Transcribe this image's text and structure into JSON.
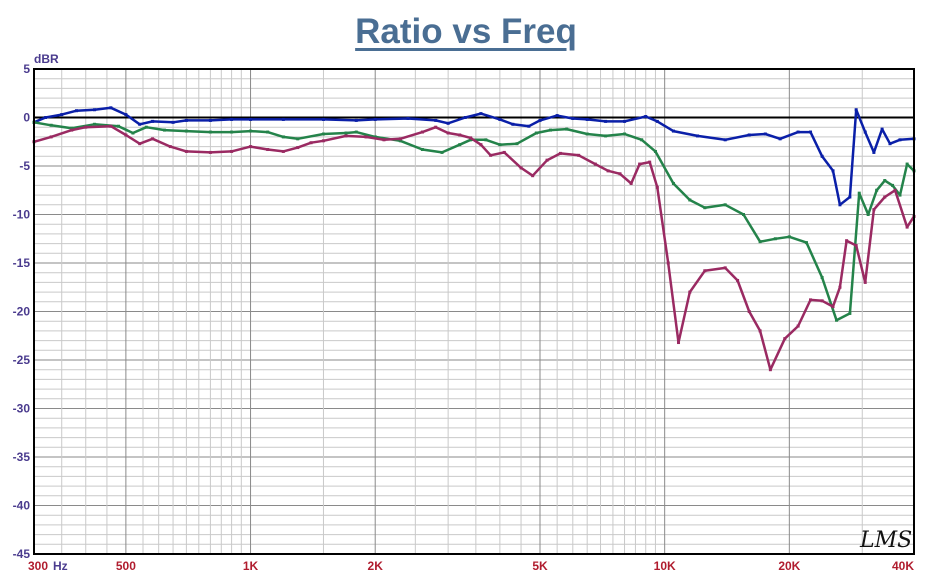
{
  "chart_data": {
    "type": "line",
    "title": "Ratio vs Freq",
    "ylabel": "dBR",
    "xlabel": "",
    "xscale": "log",
    "xlim": [
      300,
      40000
    ],
    "ylim": [
      -45,
      5
    ],
    "grid": true,
    "yticks": [
      5,
      0,
      -5,
      -10,
      -15,
      -20,
      -25,
      -30,
      -35,
      -40,
      -45
    ],
    "xticks": [
      {
        "value": 300,
        "label": "300"
      },
      {
        "value": 500,
        "label": "500"
      },
      {
        "value": 1000,
        "label": "1K"
      },
      {
        "value": 2000,
        "label": "2K"
      },
      {
        "value": 5000,
        "label": "5K"
      },
      {
        "value": 10000,
        "label": "10K"
      },
      {
        "value": 20000,
        "label": "20K"
      },
      {
        "value": 40000,
        "label": "40K"
      }
    ],
    "x_unit_label": "Hz",
    "watermark": "LMS",
    "series": [
      {
        "color": "#0a1fa8",
        "points": [
          [
            300,
            -0.5
          ],
          [
            320,
            0
          ],
          [
            350,
            0.3
          ],
          [
            380,
            0.7
          ],
          [
            420,
            0.8
          ],
          [
            460,
            1.0
          ],
          [
            500,
            0.3
          ],
          [
            540,
            -0.7
          ],
          [
            580,
            -0.4
          ],
          [
            650,
            -0.5
          ],
          [
            700,
            -0.3
          ],
          [
            800,
            -0.3
          ],
          [
            900,
            -0.2
          ],
          [
            1000,
            -0.2
          ],
          [
            1200,
            -0.2
          ],
          [
            1500,
            -0.2
          ],
          [
            1800,
            -0.3
          ],
          [
            2000,
            -0.2
          ],
          [
            2400,
            -0.1
          ],
          [
            2800,
            -0.3
          ],
          [
            3000,
            -0.6
          ],
          [
            3300,
            0.0
          ],
          [
            3600,
            0.4
          ],
          [
            4000,
            -0.2
          ],
          [
            4300,
            -0.7
          ],
          [
            4700,
            -0.9
          ],
          [
            5000,
            -0.3
          ],
          [
            5500,
            0.2
          ],
          [
            6000,
            -0.1
          ],
          [
            6500,
            -0.2
          ],
          [
            7200,
            -0.4
          ],
          [
            8000,
            -0.4
          ],
          [
            9000,
            0.1
          ],
          [
            9600,
            -0.4
          ],
          [
            10500,
            -1.4
          ],
          [
            12000,
            -1.9
          ],
          [
            14000,
            -2.3
          ],
          [
            16000,
            -1.8
          ],
          [
            17500,
            -1.7
          ],
          [
            19000,
            -2.2
          ],
          [
            21000,
            -1.5
          ],
          [
            22500,
            -1.5
          ],
          [
            24000,
            -4.0
          ],
          [
            25500,
            -5.5
          ],
          [
            26500,
            -9.0
          ],
          [
            28000,
            -8.2
          ],
          [
            29000,
            0.8
          ],
          [
            30500,
            -1.5
          ],
          [
            32000,
            -3.6
          ],
          [
            33500,
            -1.2
          ],
          [
            35000,
            -2.7
          ],
          [
            37000,
            -2.3
          ],
          [
            40000,
            -2.2
          ]
        ]
      },
      {
        "color": "#24834a",
        "points": [
          [
            300,
            -0.5
          ],
          [
            330,
            -0.8
          ],
          [
            370,
            -1.1
          ],
          [
            420,
            -0.7
          ],
          [
            480,
            -0.9
          ],
          [
            520,
            -1.6
          ],
          [
            560,
            -1.0
          ],
          [
            620,
            -1.3
          ],
          [
            700,
            -1.4
          ],
          [
            800,
            -1.5
          ],
          [
            900,
            -1.5
          ],
          [
            1000,
            -1.4
          ],
          [
            1100,
            -1.5
          ],
          [
            1200,
            -2.0
          ],
          [
            1300,
            -2.2
          ],
          [
            1500,
            -1.7
          ],
          [
            1700,
            -1.6
          ],
          [
            1800,
            -1.5
          ],
          [
            2000,
            -2.0
          ],
          [
            2300,
            -2.4
          ],
          [
            2600,
            -3.3
          ],
          [
            2900,
            -3.6
          ],
          [
            3200,
            -2.8
          ],
          [
            3400,
            -2.3
          ],
          [
            3700,
            -2.3
          ],
          [
            4000,
            -2.8
          ],
          [
            4400,
            -2.7
          ],
          [
            4900,
            -1.6
          ],
          [
            5300,
            -1.3
          ],
          [
            5800,
            -1.2
          ],
          [
            6500,
            -1.7
          ],
          [
            7200,
            -1.9
          ],
          [
            8000,
            -1.7
          ],
          [
            8800,
            -2.3
          ],
          [
            9500,
            -3.5
          ],
          [
            10500,
            -6.8
          ],
          [
            11500,
            -8.5
          ],
          [
            12500,
            -9.3
          ],
          [
            14000,
            -9.0
          ],
          [
            15500,
            -10.0
          ],
          [
            17000,
            -12.8
          ],
          [
            18500,
            -12.5
          ],
          [
            20000,
            -12.3
          ],
          [
            22000,
            -12.9
          ],
          [
            24000,
            -16.5
          ],
          [
            26000,
            -20.9
          ],
          [
            28000,
            -20.2
          ],
          [
            29500,
            -7.8
          ],
          [
            31000,
            -10.0
          ],
          [
            32500,
            -7.5
          ],
          [
            34000,
            -6.5
          ],
          [
            35500,
            -7.0
          ],
          [
            37000,
            -8.0
          ],
          [
            38500,
            -4.8
          ],
          [
            40000,
            -5.5
          ]
        ]
      },
      {
        "color": "#9a2a62",
        "points": [
          [
            300,
            -2.5
          ],
          [
            330,
            -2.0
          ],
          [
            370,
            -1.3
          ],
          [
            400,
            -1.0
          ],
          [
            460,
            -0.9
          ],
          [
            500,
            -1.8
          ],
          [
            540,
            -2.7
          ],
          [
            580,
            -2.2
          ],
          [
            640,
            -3.0
          ],
          [
            700,
            -3.5
          ],
          [
            800,
            -3.6
          ],
          [
            900,
            -3.5
          ],
          [
            1000,
            -3.0
          ],
          [
            1100,
            -3.3
          ],
          [
            1200,
            -3.5
          ],
          [
            1300,
            -3.1
          ],
          [
            1400,
            -2.6
          ],
          [
            1500,
            -2.4
          ],
          [
            1700,
            -1.9
          ],
          [
            1900,
            -2.0
          ],
          [
            2100,
            -2.3
          ],
          [
            2300,
            -2.2
          ],
          [
            2600,
            -1.5
          ],
          [
            2800,
            -1.0
          ],
          [
            3000,
            -1.6
          ],
          [
            3200,
            -1.8
          ],
          [
            3400,
            -2.1
          ],
          [
            3600,
            -2.8
          ],
          [
            3800,
            -3.9
          ],
          [
            4100,
            -3.6
          ],
          [
            4500,
            -5.2
          ],
          [
            4800,
            -6.0
          ],
          [
            5200,
            -4.4
          ],
          [
            5600,
            -3.7
          ],
          [
            6200,
            -3.9
          ],
          [
            6800,
            -4.8
          ],
          [
            7300,
            -5.5
          ],
          [
            7800,
            -5.8
          ],
          [
            8300,
            -6.8
          ],
          [
            8700,
            -4.8
          ],
          [
            9200,
            -4.6
          ],
          [
            9600,
            -7.2
          ],
          [
            10200,
            -15.0
          ],
          [
            10800,
            -23.2
          ],
          [
            11500,
            -18.0
          ],
          [
            12500,
            -15.8
          ],
          [
            14000,
            -15.5
          ],
          [
            15000,
            -16.8
          ],
          [
            16000,
            -20.0
          ],
          [
            17000,
            -22.0
          ],
          [
            18000,
            -26.0
          ],
          [
            19500,
            -22.8
          ],
          [
            21000,
            -21.5
          ],
          [
            22500,
            -18.8
          ],
          [
            24000,
            -18.9
          ],
          [
            25500,
            -19.5
          ],
          [
            26500,
            -17.5
          ],
          [
            27500,
            -12.7
          ],
          [
            29000,
            -13.2
          ],
          [
            30500,
            -17.0
          ],
          [
            32000,
            -9.5
          ],
          [
            34000,
            -8.2
          ],
          [
            36000,
            -7.5
          ],
          [
            38500,
            -11.3
          ],
          [
            40000,
            -10.2
          ]
        ]
      }
    ]
  }
}
